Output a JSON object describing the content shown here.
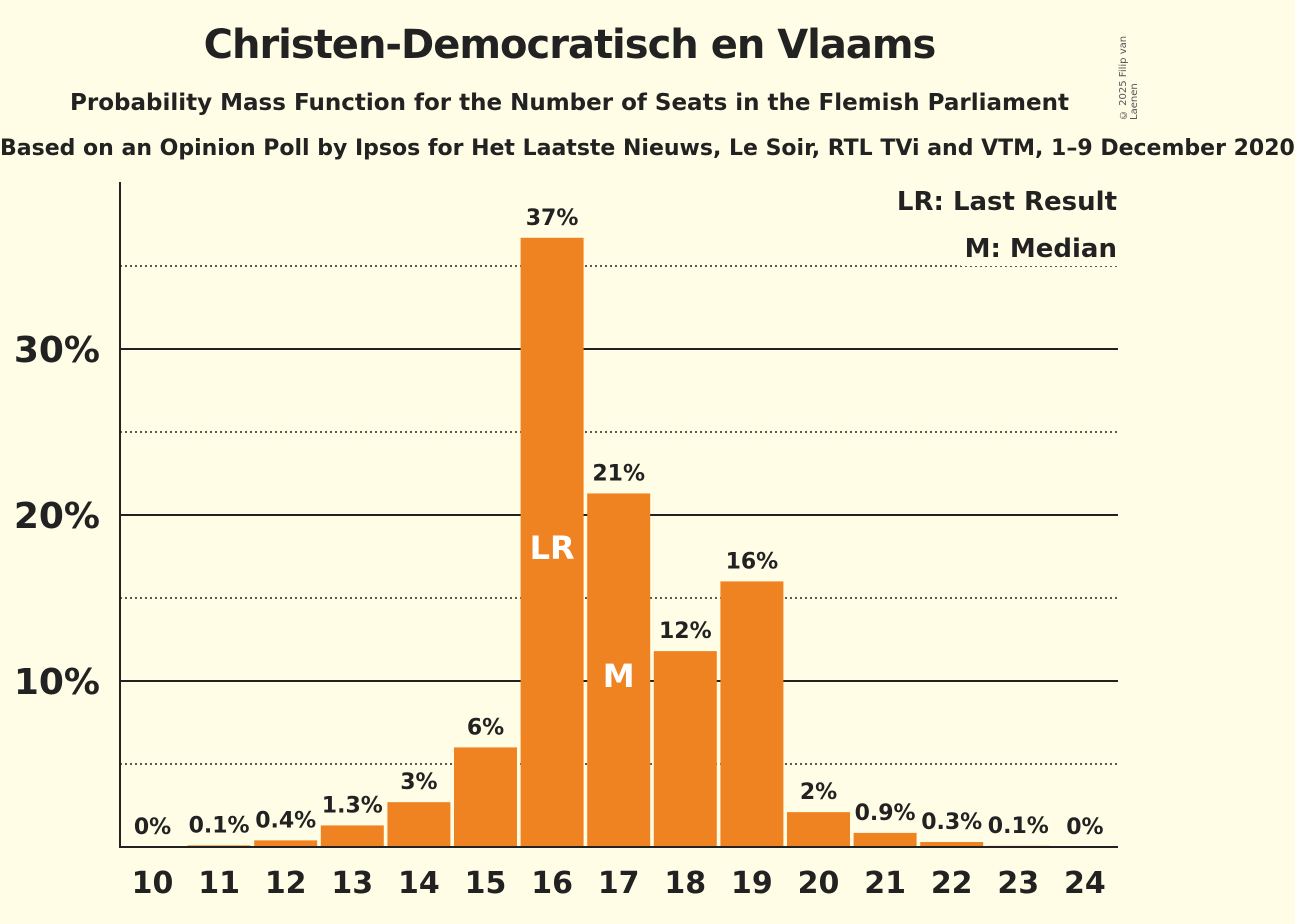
{
  "chart_data": {
    "type": "bar",
    "title": "Christen-Democratisch en Vlaams",
    "subtitle": "Probability Mass Function for the Number of Seats in the Flemish Parliament",
    "source": "Based on an Opinion Poll by Ipsos for Het Laatste Nieuws, Le Soir, RTL TVi and VTM, 1–9 December 2020",
    "copyright": "© 2025 Filip van Laenen",
    "categories": [
      "10",
      "11",
      "12",
      "13",
      "14",
      "15",
      "16",
      "17",
      "18",
      "19",
      "20",
      "21",
      "22",
      "23",
      "24"
    ],
    "values": [
      0,
      0.1,
      0.4,
      1.3,
      2.7,
      6.0,
      36.7,
      21.3,
      11.8,
      16.0,
      2.1,
      0.85,
      0.3,
      0.07,
      0
    ],
    "value_labels": [
      "0%",
      "0.1%",
      "0.4%",
      "1.3%",
      "3%",
      "6%",
      "37%",
      "21%",
      "12%",
      "16%",
      "2%",
      "0.9%",
      "0.3%",
      "0.1%",
      "0%"
    ],
    "in_bar_labels": [
      {
        "category": "16",
        "text": "LR",
        "value": 18
      },
      {
        "category": "17",
        "text": "M",
        "value": 10.3
      }
    ],
    "legend": [
      "LR: Last Result",
      "M: Median"
    ],
    "legend_position": "top-right",
    "y_ticks": [
      10,
      20,
      30
    ],
    "y_tick_labels": [
      "10%",
      "20%",
      "30%"
    ],
    "y_minor_gridlines": [
      5,
      15,
      25,
      35
    ],
    "ylim": [
      0,
      40
    ],
    "xlabel": "",
    "ylabel": "",
    "bar_color": "#f08321"
  }
}
